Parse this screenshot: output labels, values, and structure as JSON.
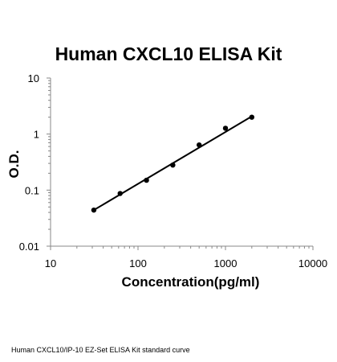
{
  "chart_data": {
    "type": "scatter",
    "title": "Human CXCL10 ELISA Kit",
    "xlabel": "Concentration(pg/ml)",
    "ylabel": "O.D.",
    "x_scale": "log",
    "y_scale": "log",
    "xlim": [
      10,
      10000
    ],
    "ylim": [
      0.01,
      10
    ],
    "x_ticks": [
      "10",
      "100",
      "1000",
      "10000"
    ],
    "y_ticks": [
      "0.01",
      "0.1",
      "1",
      "10"
    ],
    "grid": false,
    "legend": "none",
    "series": [
      {
        "marker_color": "#000000",
        "points": [
          {
            "x": 31.25,
            "y": 0.044
          },
          {
            "x": 62.5,
            "y": 0.087
          },
          {
            "x": 125,
            "y": 0.15
          },
          {
            "x": 250,
            "y": 0.28
          },
          {
            "x": 500,
            "y": 0.64
          },
          {
            "x": 1000,
            "y": 1.27
          },
          {
            "x": 2000,
            "y": 2.0
          }
        ],
        "fit_line": {
          "x": [
            31.25,
            2000
          ],
          "y": [
            0.044,
            2.07
          ]
        }
      }
    ]
  },
  "caption": "Human CXCL10/IP-10 EZ-Set ELISA Kit standard curve"
}
